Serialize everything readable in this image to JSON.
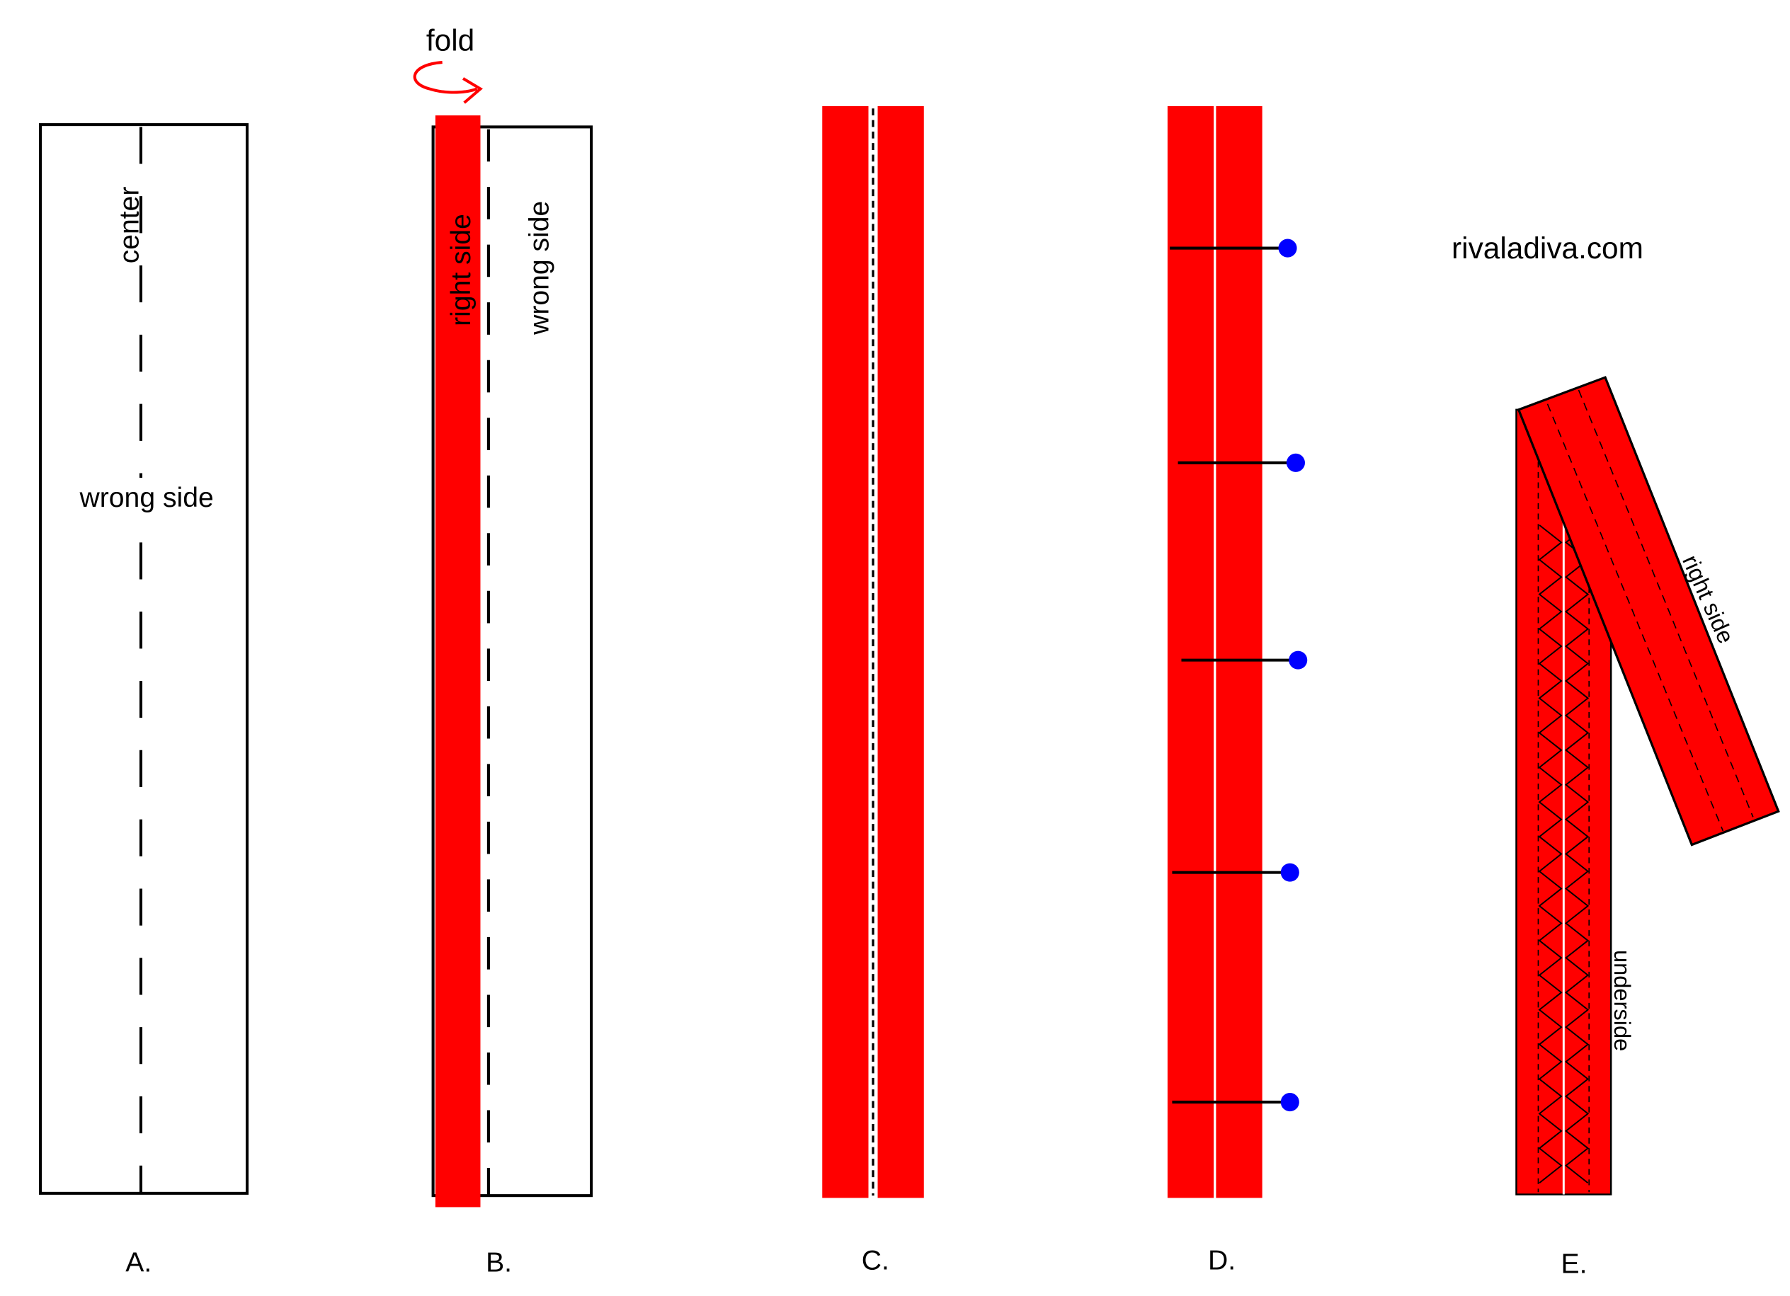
{
  "diagram": {
    "watermark": "rivaladiva.com",
    "panel_a": {
      "caption": "A.",
      "center_label": "center",
      "side_label": "wrong side"
    },
    "panel_b": {
      "caption": "B.",
      "fold_label": "fold",
      "right_label": "right side",
      "wrong_label": "wrong side"
    },
    "panel_c": {
      "caption": "C."
    },
    "panel_d": {
      "caption": "D.",
      "pin_count": 5
    },
    "panel_e": {
      "caption": "E.",
      "right_label": "right side",
      "under_label": "underside"
    }
  },
  "colors": {
    "fabric": "#ff0000",
    "pin_head": "#0000ff",
    "outline": "#000000",
    "fold_arrow": "#ff0000"
  }
}
